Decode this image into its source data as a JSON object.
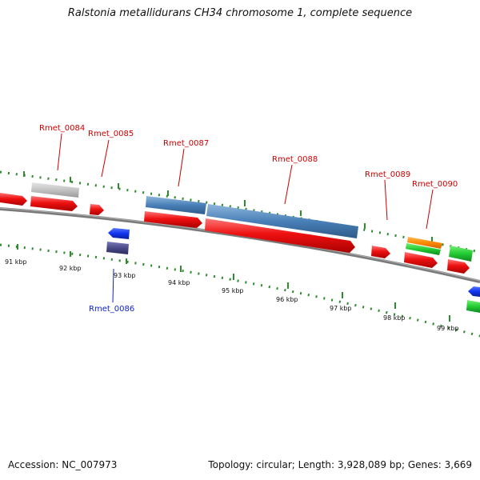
{
  "title": "Ralstonia metallidurans CH34 chromosome 1, complete sequence",
  "footer": {
    "accession": "Accession: NC_007973",
    "summary": "Topology: circular; Length: 3,928,089 bp; Genes: 3,669"
  },
  "colors": {
    "cds": "#ee1111",
    "pseudo": "#bbbbbb",
    "rna": "#4a80b8",
    "minus_blue": "#1133ee",
    "minus_purple": "#4b4a8a",
    "green": "#22cc33",
    "orange": "#ff8800",
    "label_red": "#cc0000",
    "label_blue": "#1122cc",
    "tick": "#2e8b2e",
    "backbone": "#808080"
  },
  "kbp_labels": [
    "91 kbp",
    "92 kbp",
    "93 kbp",
    "94 kbp",
    "95 kbp",
    "96 kbp",
    "97 kbp",
    "98 kbp",
    "99 kbp"
  ],
  "gene_labels": [
    "Rmet_0084",
    "Rmet_0085",
    "Rmet_0087",
    "Rmet_0088",
    "Rmet_0089",
    "Rmet_0090",
    "Rmet_0086"
  ]
}
